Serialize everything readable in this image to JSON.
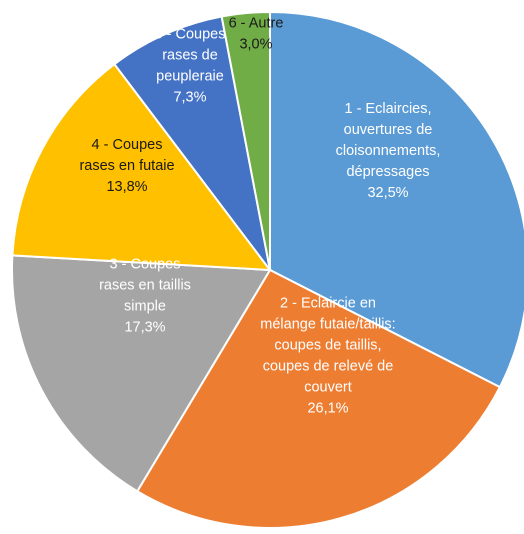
{
  "chart_data": {
    "type": "pie",
    "start_angle_deg": 0,
    "direction": "clockwise",
    "slices": [
      {
        "label_lines": [
          "1 - Eclaircies,",
          "ouvertures de",
          "cloisonnements,",
          "dépressages",
          "32,5%"
        ],
        "value": 32.5,
        "color": "#5b9bd5"
      },
      {
        "label_lines": [
          "2 - Eclaircie en",
          "mélange futaie/taillis:",
          "coupes de taillis,",
          "coupes de relevé de",
          "couvert",
          "26,1%"
        ],
        "value": 26.1,
        "color": "#ed7d31"
      },
      {
        "label_lines": [
          "3 - Coupes",
          "rases en taillis",
          "simple",
          "17,3%"
        ],
        "value": 17.3,
        "color": "#a5a5a5"
      },
      {
        "label_lines": [
          "4 - Coupes",
          "rases en futaie",
          "13,8%"
        ],
        "value": 13.8,
        "color": "#ffc000"
      },
      {
        "label_lines": [
          "5 - Coupes",
          "rases de",
          "peupleraie",
          "7,3%"
        ],
        "value": 7.3,
        "color": "#4472c4"
      },
      {
        "label_lines": [
          "6 - Autre",
          "3,0%"
        ],
        "value": 3.0,
        "color": "#70ad47"
      }
    ]
  }
}
